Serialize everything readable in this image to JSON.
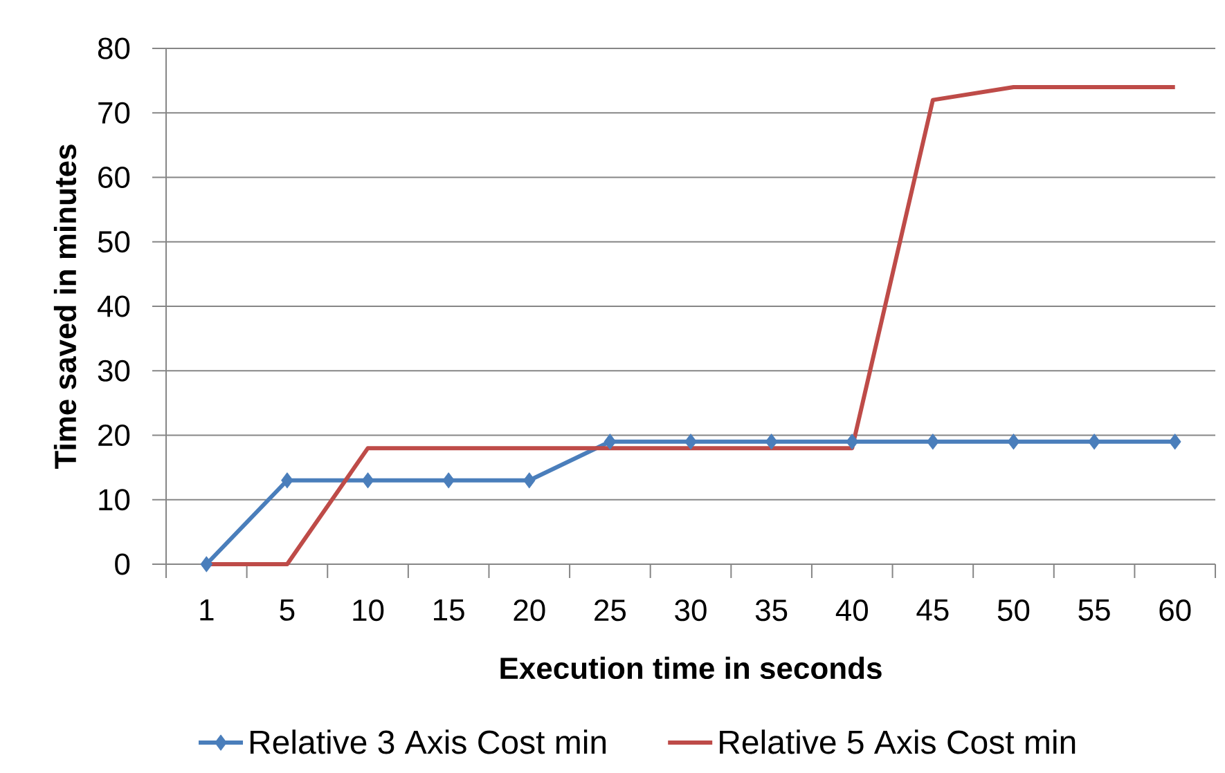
{
  "chart_data": {
    "type": "line",
    "xlabel": "Execution time in seconds",
    "ylabel": "Time saved in minutes",
    "categories": [
      "1",
      "5",
      "10",
      "15",
      "20",
      "25",
      "30",
      "35",
      "40",
      "45",
      "50",
      "55",
      "60"
    ],
    "series": [
      {
        "name": "Relative 3 Axis Cost min",
        "color": "#4a7ebb",
        "marker": "diamond",
        "values": [
          0,
          13,
          13,
          13,
          13,
          19,
          19,
          19,
          19,
          19,
          19,
          19,
          19
        ]
      },
      {
        "name": "Relative 5 Axis Cost min",
        "color": "#be4b48",
        "marker": "none",
        "values": [
          0,
          0,
          18,
          18,
          18,
          18,
          18,
          18,
          18,
          72,
          74,
          74,
          74
        ]
      }
    ],
    "ylim": [
      0,
      80
    ],
    "yticks": [
      0,
      10,
      20,
      30,
      40,
      50,
      60,
      70,
      80
    ],
    "grid": "y",
    "legend": "bottom"
  }
}
